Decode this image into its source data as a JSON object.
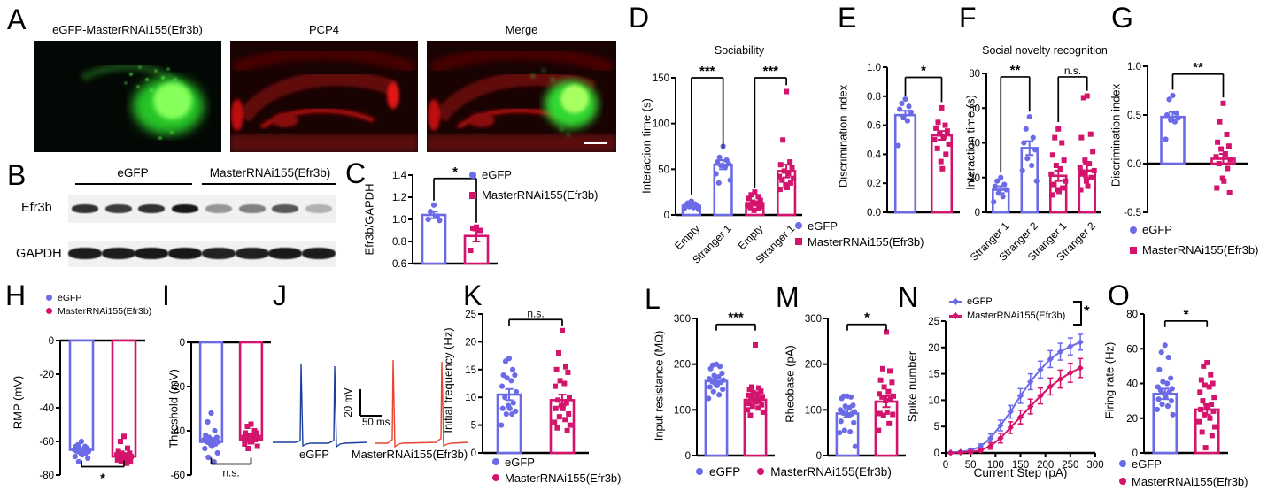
{
  "colors": {
    "egfp": "#6B6BE8",
    "rnai": "#D4146C",
    "trace_blue": "#1c3f9e",
    "trace_red": "#e8432e"
  },
  "legend": {
    "egfp": "eGFP",
    "rnai": "MasterRNAi155(Efr3b)"
  },
  "panelA": {
    "letter": "A",
    "img1_title": "eGFP-MasterRNAi155(Efr3b)",
    "img2_title": "PCP4",
    "img3_title": "Merge"
  },
  "panelB": {
    "letter": "B",
    "group1": "eGFP",
    "group2": "MasterRNAi155(Efr3b)",
    "row1": "Efr3b",
    "row2": "GAPDH",
    "efr3b_intensity": [
      0.85,
      0.8,
      0.85,
      0.97,
      0.4,
      0.5,
      0.68,
      0.28
    ],
    "gapdh_intensity": [
      0.95,
      0.95,
      0.97,
      0.97,
      0.92,
      0.93,
      0.96,
      0.95
    ]
  },
  "panelJ": {
    "letter": "J",
    "label1": "eGFP",
    "label2": "MasterRNAi155(Efr3b)",
    "scale_v": "20 mV",
    "scale_h": "50 ms"
  },
  "chart_data": [
    {
      "id": "C",
      "letter": "C",
      "type": "bar",
      "ylabel": "Efr3b/GAPDH",
      "ylim": [
        0.6,
        1.4
      ],
      "yticks": [
        [
          0.6,
          "0.6"
        ],
        [
          0.8,
          "0.8"
        ],
        [
          1.0,
          "1.0"
        ],
        [
          1.2,
          "1.2"
        ],
        [
          1.4,
          "1.4"
        ]
      ],
      "bars": [
        {
          "g": "egfp",
          "v": 1.04,
          "e": 0.03,
          "dots": [
            1.13,
            1.07,
            1.03,
            1.0,
            0.99
          ]
        },
        {
          "g": "rnai",
          "v": 0.85,
          "e": 0.05,
          "dots": [
            0.93,
            0.92,
            0.9,
            0.72
          ]
        }
      ],
      "sig": [
        {
          "a": 0,
          "b": 1,
          "label": "*",
          "at": 1.37,
          "drop": [
            1.17,
            0.97
          ]
        }
      ]
    },
    {
      "id": "D",
      "letter": "D",
      "type": "bar",
      "title": "Sociability",
      "ylabel": "Interaction time (s)",
      "ylim": [
        0,
        150
      ],
      "yticks": [
        [
          0,
          "0"
        ],
        [
          50,
          "50"
        ],
        [
          100,
          "100"
        ],
        [
          150,
          "150"
        ]
      ],
      "bars": [
        {
          "g": "egfp",
          "label": "Empty",
          "v": 10,
          "e": 2,
          "dots": [
            15,
            13,
            12,
            11,
            10,
            9,
            8,
            7,
            6
          ]
        },
        {
          "g": "egfp",
          "label": "Stranger 1",
          "v": 55,
          "e": 5,
          "dots": [
            75,
            63,
            60,
            58,
            56,
            54,
            52,
            45,
            38,
            35
          ]
        },
        {
          "g": "rnai",
          "label": "Empty",
          "v": 13,
          "e": 2,
          "dots": [
            25,
            22,
            20,
            18,
            16,
            14,
            12,
            10,
            9,
            8,
            7,
            5
          ]
        },
        {
          "g": "rnai",
          "label": "Stranger 1",
          "v": 48,
          "e": 7,
          "dots": [
            135,
            82,
            58,
            55,
            52,
            48,
            45,
            42,
            40,
            38,
            35,
            33,
            30,
            28
          ]
        }
      ],
      "sig": [
        {
          "a": 0,
          "b": 1,
          "label": "***",
          "at": 150,
          "drop": [
            22,
            72
          ]
        },
        {
          "a": 2,
          "b": 3,
          "label": "***",
          "at": 150,
          "drop": [
            30,
            142
          ]
        }
      ]
    },
    {
      "id": "E",
      "letter": "E",
      "type": "bar",
      "ylabel": "Discrimination index",
      "ylim": [
        0,
        1.0
      ],
      "yticks": [
        [
          0,
          "0.0"
        ],
        [
          0.2,
          "0.2"
        ],
        [
          0.4,
          "0.4"
        ],
        [
          0.6,
          "0.6"
        ],
        [
          0.8,
          "0.8"
        ],
        [
          1.0,
          "1.0"
        ]
      ],
      "bars": [
        {
          "g": "egfp",
          "v": 0.67,
          "e": 0.03,
          "dots": [
            0.78,
            0.75,
            0.73,
            0.71,
            0.69,
            0.66,
            0.63,
            0.46
          ]
        },
        {
          "g": "rnai",
          "v": 0.53,
          "e": 0.03,
          "dots": [
            0.72,
            0.62,
            0.6,
            0.58,
            0.56,
            0.54,
            0.52,
            0.5,
            0.47,
            0.44,
            0.4,
            0.35,
            0.3
          ]
        }
      ],
      "sig": [
        {
          "a": 0,
          "b": 1,
          "label": "*",
          "at": 0.93,
          "drop": [
            0.8,
            0.76
          ]
        }
      ]
    },
    {
      "id": "F",
      "letter": "F",
      "type": "bar",
      "title": "Social novelty recognition",
      "ylabel": "Interaction time (s)",
      "ylim": [
        0,
        80
      ],
      "yticks": [
        [
          0,
          "0"
        ],
        [
          20,
          "20"
        ],
        [
          40,
          "40"
        ],
        [
          60,
          "60"
        ],
        [
          80,
          "80"
        ]
      ],
      "bars": [
        {
          "g": "egfp",
          "label": "Stranger 1",
          "v": 13,
          "e": 2,
          "dots": [
            20,
            18,
            16,
            15,
            13,
            11,
            9,
            6
          ]
        },
        {
          "g": "egfp",
          "label": "Stranger 2",
          "v": 37,
          "e": 4,
          "dots": [
            55,
            48,
            43,
            40,
            36,
            31,
            27,
            24,
            18
          ]
        },
        {
          "g": "rnai",
          "label": "Stranger 1",
          "v": 21,
          "e": 3,
          "dots": [
            48,
            43,
            40,
            33,
            30,
            27,
            25,
            22,
            18,
            16,
            14,
            13,
            12,
            10
          ]
        },
        {
          "g": "rnai",
          "label": "Stranger 2",
          "v": 24,
          "e": 4,
          "dots": [
            67,
            66,
            45,
            43,
            35,
            30,
            28,
            26,
            24,
            22,
            20,
            18,
            15,
            13
          ]
        }
      ],
      "sig": [
        {
          "a": 0,
          "b": 1,
          "label": "**",
          "at": 78,
          "drop": [
            23,
            58
          ]
        },
        {
          "a": 2,
          "b": 3,
          "label": "n.s.",
          "at": 78,
          "drop": [
            52,
            70
          ]
        }
      ]
    },
    {
      "id": "G",
      "letter": "G",
      "type": "bar",
      "ylabel": "Discrimination index",
      "ylim": [
        -0.5,
        1.0
      ],
      "yticks": [
        [
          -0.5,
          "-0.5"
        ],
        [
          0,
          "0.0"
        ],
        [
          0.5,
          "0.5"
        ],
        [
          1.0,
          "1.0"
        ]
      ],
      "bars": [
        {
          "g": "egfp",
          "v": 0.48,
          "e": 0.05,
          "dots": [
            0.7,
            0.66,
            0.52,
            0.5,
            0.47,
            0.45,
            0.43,
            0.25
          ]
        },
        {
          "g": "rnai",
          "v": 0.05,
          "e": 0.05,
          "dots": [
            0.62,
            0.43,
            0.3,
            0.22,
            0.18,
            0.15,
            0.1,
            0.07,
            0.04,
            0.0,
            -0.05,
            -0.15,
            -0.18,
            -0.25,
            -0.3
          ]
        }
      ],
      "sig": [
        {
          "a": 0,
          "b": 1,
          "label": "**",
          "at": 0.92,
          "drop": [
            0.76,
            0.68
          ]
        }
      ]
    },
    {
      "id": "H",
      "letter": "H",
      "type": "bar",
      "ylabel": "RMP (mV)",
      "ylim": [
        -80,
        0
      ],
      "yticks": [
        [
          0,
          "0"
        ],
        [
          -20,
          "-20"
        ],
        [
          -40,
          "-40"
        ],
        [
          -60,
          "-60"
        ],
        [
          -80,
          "-80"
        ]
      ],
      "bars": [
        {
          "g": "egfp",
          "v": -65,
          "e": 1,
          "dots": [
            -60,
            -62,
            -63,
            -63,
            -64,
            -64,
            -65,
            -65,
            -66,
            -66,
            -67,
            -67,
            -68,
            -69,
            -70,
            -72
          ]
        },
        {
          "g": "rnai",
          "v": -69,
          "e": 1,
          "dots": [
            -57,
            -60,
            -64,
            -66,
            -67,
            -67,
            -68,
            -68,
            -69,
            -69,
            -70,
            -70,
            -71,
            -71,
            -72,
            -72,
            -73
          ]
        }
      ],
      "sig": [
        {
          "a": 0,
          "b": 1,
          "label": "*",
          "at": -75,
          "below": true
        }
      ]
    },
    {
      "id": "I",
      "letter": "I",
      "type": "bar",
      "ylabel": "Threshold (mV)",
      "ylim": [
        -60,
        0
      ],
      "yticks": [
        [
          0,
          "0"
        ],
        [
          -20,
          "-20"
        ],
        [
          -40,
          "-40"
        ],
        [
          -60,
          "-60"
        ]
      ],
      "bars": [
        {
          "g": "egfp",
          "v": -45,
          "e": 1,
          "dots": [
            -32,
            -36,
            -40,
            -42,
            -43,
            -43,
            -44,
            -44,
            -45,
            -45,
            -46,
            -46,
            -47,
            -48,
            -50,
            -52,
            -54
          ]
        },
        {
          "g": "rnai",
          "v": -44,
          "e": 1,
          "dots": [
            -37,
            -38,
            -40,
            -41,
            -41,
            -42,
            -42,
            -43,
            -43,
            -44,
            -44,
            -45,
            -45,
            -46,
            -47,
            -48
          ]
        }
      ],
      "sig": [
        {
          "a": 0,
          "b": 1,
          "label": "n.s.",
          "at": -55,
          "below": true
        }
      ]
    },
    {
      "id": "K",
      "letter": "K",
      "type": "bar",
      "ylabel": "Initial frequency (Hz)",
      "ylim": [
        0,
        25
      ],
      "yticks": [
        [
          0,
          "0"
        ],
        [
          5,
          "5"
        ],
        [
          10,
          "10"
        ],
        [
          15,
          "15"
        ],
        [
          20,
          "20"
        ],
        [
          25,
          "25"
        ]
      ],
      "bars": [
        {
          "g": "egfp",
          "v": 10.5,
          "e": 1,
          "dots": [
            17,
            16.5,
            15,
            14,
            14,
            13.5,
            13,
            12,
            11,
            10,
            9,
            8.5,
            8,
            8,
            7.5,
            7,
            7,
            5
          ]
        },
        {
          "g": "rnai",
          "v": 9.5,
          "e": 1,
          "dots": [
            22,
            18,
            15.5,
            15,
            14.5,
            13,
            12.5,
            12,
            10,
            9.5,
            9,
            8.5,
            8,
            8,
            7,
            6.5,
            6,
            5.5,
            5,
            4.5,
            4
          ]
        }
      ],
      "sig": [
        {
          "a": 0,
          "b": 1,
          "label": "n.s.",
          "at": 24
        }
      ]
    },
    {
      "id": "L",
      "letter": "L",
      "type": "bar",
      "ylabel": "Input resistance (MΩ)",
      "ylim": [
        0,
        300
      ],
      "yticks": [
        [
          0,
          "0"
        ],
        [
          100,
          "100"
        ],
        [
          200,
          "200"
        ],
        [
          300,
          "300"
        ]
      ],
      "bars": [
        {
          "g": "egfp",
          "v": 163,
          "e": 6,
          "dots": [
            200,
            198,
            195,
            190,
            180,
            175,
            172,
            168,
            165,
            162,
            160,
            157,
            153,
            150,
            145,
            140,
            133,
            125
          ]
        },
        {
          "g": "rnai",
          "v": 122,
          "e": 6,
          "dots": [
            242,
            150,
            148,
            145,
            141,
            138,
            135,
            132,
            129,
            126,
            123,
            120,
            117,
            114,
            111,
            108,
            104,
            100,
            95,
            88
          ]
        }
      ],
      "sig": [
        {
          "a": 0,
          "b": 1,
          "label": "***",
          "at": 287
        }
      ]
    },
    {
      "id": "M",
      "letter": "M",
      "type": "bar",
      "ylabel": "Rheobase (pA)",
      "ylim": [
        0,
        300
      ],
      "yticks": [
        [
          0,
          "0"
        ],
        [
          100,
          "100"
        ],
        [
          200,
          "200"
        ],
        [
          300,
          "300"
        ]
      ],
      "bars": [
        {
          "g": "egfp",
          "v": 92,
          "e": 8,
          "dots": [
            130,
            130,
            128,
            125,
            110,
            108,
            105,
            100,
            96,
            93,
            91,
            90,
            88,
            75,
            72,
            55,
            52,
            50,
            20
          ]
        },
        {
          "g": "rnai",
          "v": 118,
          "e": 12,
          "dots": [
            270,
            190,
            185,
            165,
            160,
            150,
            140,
            135,
            130,
            128,
            125,
            120,
            95,
            92,
            90,
            88,
            70,
            55
          ]
        }
      ],
      "sig": [
        {
          "a": 0,
          "b": 1,
          "label": "*",
          "at": 287
        }
      ]
    },
    {
      "id": "N",
      "letter": "N",
      "type": "line",
      "ylabel": "Spike number",
      "xlabel": "Current Step (pA)",
      "ylim": [
        0,
        25
      ],
      "yticks": [
        [
          0,
          "0"
        ],
        [
          5,
          "5"
        ],
        [
          10,
          "10"
        ],
        [
          15,
          "15"
        ],
        [
          20,
          "20"
        ],
        [
          25,
          "25"
        ]
      ],
      "xlim": [
        0,
        300
      ],
      "xticks": [
        [
          0,
          "0"
        ],
        [
          50,
          "50"
        ],
        [
          100,
          "100"
        ],
        [
          150,
          "150"
        ],
        [
          200,
          "200"
        ],
        [
          250,
          "250"
        ],
        [
          300,
          "300"
        ]
      ],
      "series": [
        {
          "g": "egfp",
          "x": [
            10,
            30,
            50,
            70,
            90,
            110,
            130,
            150,
            170,
            190,
            210,
            230,
            250,
            270
          ],
          "y": [
            0.1,
            0.2,
            0.5,
            1.2,
            2.8,
            5.2,
            7.8,
            10.8,
            13.5,
            15.8,
            17.8,
            19.2,
            20.2,
            21.0
          ],
          "e": [
            0.1,
            0.15,
            0.3,
            0.5,
            0.8,
            1.0,
            1.2,
            1.4,
            1.5,
            1.6,
            1.6,
            1.6,
            1.6,
            1.5
          ]
        },
        {
          "g": "rnai",
          "x": [
            10,
            30,
            50,
            70,
            90,
            110,
            130,
            150,
            170,
            190,
            210,
            230,
            250,
            270
          ],
          "y": [
            0.0,
            0.1,
            0.2,
            0.5,
            1.3,
            2.8,
            4.8,
            6.8,
            8.8,
            10.8,
            12.6,
            14.0,
            15.2,
            16.1
          ],
          "e": [
            0.05,
            0.1,
            0.2,
            0.3,
            0.6,
            0.9,
            1.1,
            1.3,
            1.4,
            1.5,
            1.6,
            1.7,
            1.8,
            1.8
          ]
        }
      ],
      "sig_label": "*"
    },
    {
      "id": "O",
      "letter": "O",
      "type": "bar",
      "ylabel": "Firing rate (Hz)",
      "ylim": [
        0,
        80
      ],
      "yticks": [
        [
          0,
          "0"
        ],
        [
          20,
          "20"
        ],
        [
          40,
          "40"
        ],
        [
          60,
          "60"
        ],
        [
          80,
          "80"
        ]
      ],
      "bars": [
        {
          "g": "egfp",
          "v": 34,
          "e": 3,
          "dots": [
            62,
            58,
            55,
            48,
            43,
            41,
            40,
            38,
            37,
            36,
            35,
            34,
            32,
            31,
            30,
            28,
            27,
            25,
            22
          ]
        },
        {
          "g": "rnai",
          "v": 25,
          "e": 3,
          "dots": [
            52,
            50,
            45,
            42,
            40,
            39,
            38,
            35,
            32,
            30,
            28,
            27,
            26,
            25,
            24,
            22,
            20,
            18,
            15,
            12,
            10,
            3
          ]
        }
      ],
      "sig": [
        {
          "a": 0,
          "b": 1,
          "label": "*",
          "at": 76
        }
      ]
    }
  ]
}
